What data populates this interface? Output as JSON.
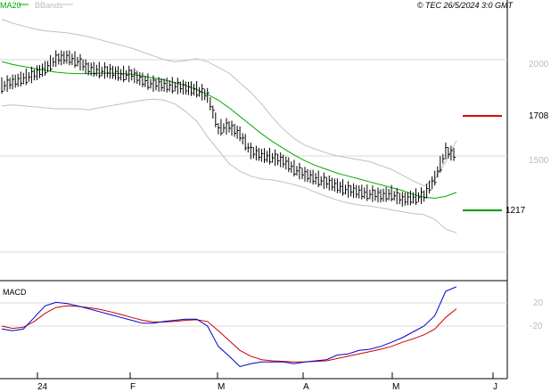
{
  "legend": {
    "ma_label": "MA20",
    "bb_label": "BBands"
  },
  "copyright": "© TEC 26/5/2024 3:0 GMT",
  "macd_label": "MACD",
  "levels": {
    "resistance": {
      "label": "1708",
      "value": 1708,
      "color": "#cc0000"
    },
    "support": {
      "label": "1217",
      "value": 1217,
      "color": "#009900"
    }
  },
  "colors": {
    "bars": "#000000",
    "ma": "#00aa00",
    "bbands": "#c0c0c0",
    "macd": "#0000cc",
    "signal": "#cc0000",
    "grid": "#d8d8d8"
  },
  "chart_data": [
    {
      "type": "ohlc",
      "y_tick_labels": [
        "2000",
        "1500"
      ],
      "y_ticks": [
        2000,
        1500
      ],
      "ylim": [
        700,
        2600
      ],
      "x_tick_labels": [
        "24",
        "F",
        "M",
        "A",
        "M",
        "J"
      ],
      "series": [
        {
          "name": "MA20",
          "values": [
            1990,
            1975,
            1965,
            1955,
            1945,
            1935,
            1930,
            1928,
            1928,
            1930,
            1930,
            1928,
            1925,
            1915,
            1905,
            1895,
            1880,
            1865,
            1845,
            1820,
            1790,
            1750,
            1705,
            1660,
            1615,
            1575,
            1540,
            1505,
            1475,
            1450,
            1430,
            1410,
            1395,
            1380,
            1365,
            1350,
            1335,
            1320,
            1300,
            1285,
            1280,
            1290,
            1310
          ]
        },
        {
          "name": "BBands upper",
          "values": [
            2210,
            2190,
            2175,
            2160,
            2150,
            2145,
            2140,
            2130,
            2120,
            2105,
            2090,
            2075,
            2060,
            2040,
            2020,
            2000,
            1990,
            1995,
            2005,
            1990,
            1960,
            1930,
            1880,
            1830,
            1770,
            1700,
            1640,
            1590,
            1555,
            1535,
            1515,
            1500,
            1490,
            1480,
            1470,
            1450,
            1430,
            1400,
            1370,
            1345,
            1380,
            1470,
            1580
          ]
        },
        {
          "name": "BBands lower",
          "values": [
            1760,
            1765,
            1760,
            1755,
            1750,
            1745,
            1745,
            1745,
            1740,
            1750,
            1760,
            1770,
            1780,
            1790,
            1795,
            1790,
            1770,
            1730,
            1680,
            1600,
            1530,
            1460,
            1420,
            1395,
            1380,
            1375,
            1365,
            1350,
            1335,
            1310,
            1290,
            1270,
            1255,
            1245,
            1240,
            1230,
            1220,
            1210,
            1200,
            1195,
            1170,
            1120,
            1100
          ]
        },
        {
          "name": "Price",
          "values": [
            1860,
            1880,
            1900,
            1920,
            1950,
            2000,
            2010,
            1990,
            1950,
            1940,
            1935,
            1920,
            1920,
            1890,
            1870,
            1865,
            1860,
            1850,
            1840,
            1810,
            1640,
            1650,
            1610,
            1520,
            1500,
            1490,
            1470,
            1430,
            1400,
            1380,
            1360,
            1340,
            1320,
            1310,
            1300,
            1290,
            1300,
            1270,
            1280,
            1290,
            1380,
            1520,
            1500
          ]
        }
      ]
    },
    {
      "type": "line",
      "title": "MACD",
      "y_tick_labels": [
        "20",
        "-20"
      ],
      "y_ticks": [
        20,
        -20
      ],
      "ylim": [
        -115,
        65
      ],
      "x_tick_labels": [
        "24",
        "F",
        "M",
        "A",
        "M",
        "J"
      ],
      "series": [
        {
          "name": "MACD",
          "values": [
            -25,
            -28,
            -25,
            -5,
            15,
            21,
            19,
            15,
            10,
            5,
            0,
            -5,
            -10,
            -15,
            -15,
            -12,
            -10,
            -8,
            -8,
            -20,
            -55,
            -72,
            -90,
            -85,
            -82,
            -82,
            -82,
            -85,
            -82,
            -80,
            -78,
            -70,
            -68,
            -62,
            -60,
            -55,
            -48,
            -40,
            -30,
            -20,
            -2,
            40,
            48
          ]
        },
        {
          "name": "Signal",
          "values": [
            -20,
            -24,
            -22,
            -12,
            2,
            12,
            15,
            14,
            12,
            9,
            5,
            0,
            -5,
            -10,
            -13,
            -13,
            -12,
            -10,
            -9,
            -12,
            -28,
            -45,
            -62,
            -72,
            -78,
            -80,
            -81,
            -82,
            -82,
            -81,
            -80,
            -76,
            -72,
            -68,
            -64,
            -60,
            -55,
            -48,
            -42,
            -35,
            -25,
            -5,
            10
          ]
        }
      ]
    }
  ]
}
